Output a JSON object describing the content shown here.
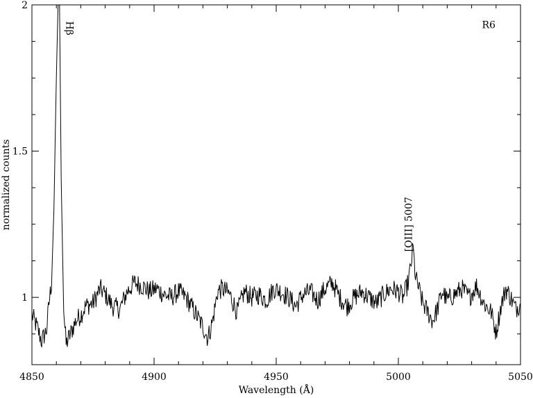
{
  "chart_data": {
    "type": "line",
    "title": "",
    "xlabel": "Wavelength  (Å)",
    "ylabel": "normalized counts",
    "xlim": [
      4850,
      5050
    ],
    "ylim": [
      0.77,
      2.0
    ],
    "x_ticks": [
      4850,
      4900,
      4950,
      5000,
      5050
    ],
    "x_tick_labels": [
      "4850",
      "4900",
      "4950",
      "5000",
      "5050"
    ],
    "y_ticks": [
      1,
      1.5,
      2
    ],
    "y_tick_labels": [
      "1",
      "1.5",
      "2"
    ],
    "grid": false,
    "legend": "none",
    "annotations": [
      {
        "text": "Hβ",
        "x": 4864,
        "y": 1.92,
        "rotation": 90
      },
      {
        "text": "[OIII] 5007",
        "x": 5005.5,
        "y": 1.25,
        "rotation": -90
      },
      {
        "text": "R6",
        "x": 5037,
        "y": 1.92,
        "rotation": 0
      }
    ],
    "series": [
      {
        "x": [
          4850,
          4852,
          4854,
          4856,
          4857,
          4858,
          4859,
          4860,
          4860.7,
          4861.3,
          4862,
          4863,
          4864,
          4866,
          4868,
          4870,
          4872,
          4875,
          4878,
          4880,
          4883,
          4886,
          4889,
          4892,
          4895,
          4898,
          4901,
          4904,
          4907,
          4910,
          4913,
          4916,
          4918,
          4920,
          4922,
          4924,
          4926,
          4928,
          4931,
          4934,
          4937,
          4940,
          4943,
          4946,
          4949,
          4952,
          4955,
          4958,
          4961,
          4964,
          4967,
          4970,
          4973,
          4976,
          4979,
          4982,
          4985,
          4988,
          4991,
          4994,
          4997,
          5000,
          5002,
          5004,
          5005,
          5006,
          5006.5,
          5007,
          5008,
          5010,
          5012,
          5014,
          5016,
          5018,
          5020,
          5023,
          5026,
          5029,
          5032,
          5035,
          5038,
          5040,
          5042,
          5044,
          5046,
          5048,
          5050
        ],
        "y": [
          0.94,
          0.9,
          0.85,
          0.89,
          0.98,
          1.05,
          1.3,
          1.75,
          2.0,
          2.0,
          1.4,
          0.95,
          0.84,
          0.88,
          0.92,
          0.94,
          0.97,
          0.98,
          1.03,
          1.01,
          0.97,
          0.96,
          1.02,
          1.05,
          1.04,
          1.02,
          1.03,
          1.01,
          1.0,
          1.02,
          1.0,
          0.96,
          0.93,
          0.9,
          0.86,
          0.92,
          1.02,
          1.03,
          1.01,
          0.95,
          1.02,
          1.0,
          1.01,
          0.99,
          1.03,
          1.02,
          1.0,
          0.97,
          1.01,
          1.02,
          0.99,
          1.03,
          1.05,
          1.0,
          0.97,
          1.0,
          1.02,
          1.0,
          0.98,
          1.01,
          1.03,
          1.02,
          1.0,
          1.05,
          1.1,
          1.17,
          1.12,
          1.07,
          1.04,
          0.98,
          0.95,
          0.92,
          0.96,
          1.02,
          0.99,
          1.01,
          1.03,
          1.0,
          1.04,
          0.98,
          0.95,
          0.88,
          0.97,
          1.03,
          1.0,
          0.96,
          0.98
        ]
      }
    ]
  }
}
